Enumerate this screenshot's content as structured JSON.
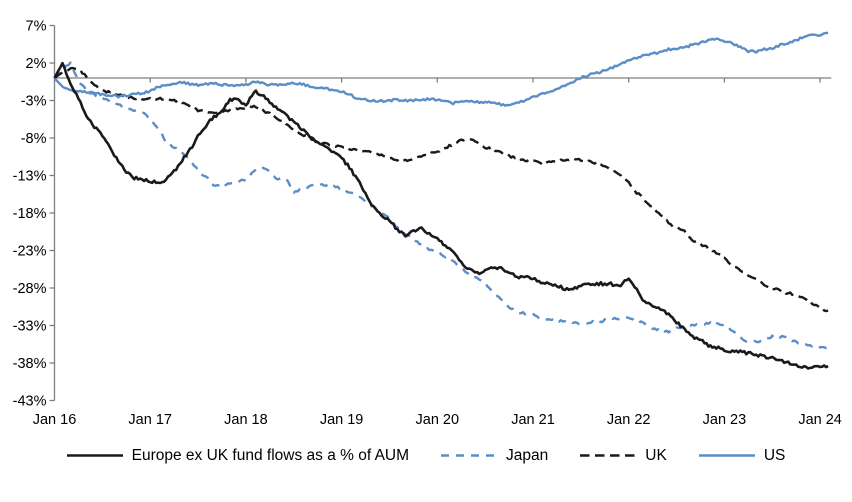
{
  "chart_data": {
    "type": "line",
    "title": "",
    "x_unit": "months since Jan 2016",
    "x_axis": {
      "ticks": [
        {
          "month": 0,
          "label": "Jan 16"
        },
        {
          "month": 12,
          "label": "Jan 17"
        },
        {
          "month": 24,
          "label": "Jan 18"
        },
        {
          "month": 36,
          "label": "Jan 19"
        },
        {
          "month": 48,
          "label": "Jan 20"
        },
        {
          "month": 60,
          "label": "Jan 21"
        },
        {
          "month": 72,
          "label": "Jan 22"
        },
        {
          "month": 84,
          "label": "Jan 23"
        },
        {
          "month": 96,
          "label": "Jan 24"
        }
      ]
    },
    "y_axis": {
      "unit": "%",
      "min": -43,
      "max": 7,
      "ticks": [
        {
          "value": 7,
          "label": "7%"
        },
        {
          "value": 2,
          "label": "2%"
        },
        {
          "value": -3,
          "label": "-3%"
        },
        {
          "value": -8,
          "label": "-8%"
        },
        {
          "value": -13,
          "label": "-13%"
        },
        {
          "value": -18,
          "label": "-18%"
        },
        {
          "value": -23,
          "label": "-23%"
        },
        {
          "value": -28,
          "label": "-28%"
        },
        {
          "value": -33,
          "label": "-33%"
        },
        {
          "value": -38,
          "label": "-38%"
        },
        {
          "value": -43,
          "label": "-43%"
        }
      ]
    },
    "zero_axis_line": true,
    "grid": "off",
    "legend_position": "bottom",
    "axis_color": "#7f7f7f",
    "series": [
      {
        "name": "Europe ex UK fund flows as a % of AUM",
        "color": "#1a1a1a",
        "line_style": "solid",
        "values": [
          0,
          2,
          -0.9,
          -2.7,
          -5.2,
          -6.5,
          -7.6,
          -9.3,
          -11.2,
          -12.5,
          -13.3,
          -13.6,
          -13.8,
          -13.9,
          -13.6,
          -12.5,
          -10.9,
          -9.6,
          -7.8,
          -6.3,
          -5.2,
          -4.3,
          -3,
          -2.9,
          -3.6,
          -1.8,
          -2.2,
          -3.2,
          -4,
          -5,
          -5.9,
          -6.8,
          -7.9,
          -8.7,
          -9.3,
          -10,
          -10.7,
          -11.9,
          -13.6,
          -15.3,
          -17.2,
          -18.3,
          -18.9,
          -20.3,
          -20.9,
          -20.4,
          -20.1,
          -20.8,
          -21.3,
          -22.3,
          -23.3,
          -24.5,
          -25.6,
          -26,
          -25.6,
          -25.2,
          -25.3,
          -26,
          -26.5,
          -26.6,
          -26.7,
          -27.2,
          -27.4,
          -27.6,
          -28.1,
          -28.2,
          -27.6,
          -27.5,
          -27.5,
          -27.4,
          -27.5,
          -27.6,
          -26.7,
          -28.3,
          -29.9,
          -30.3,
          -30.8,
          -31.5,
          -32.5,
          -33.6,
          -34.4,
          -35,
          -35.6,
          -36,
          -36.2,
          -36.4,
          -36.5,
          -36.7,
          -36.9,
          -37.1,
          -37.3,
          -37.6,
          -38,
          -38.3,
          -38.6,
          -38.5,
          -38.6,
          -38.4
        ]
      },
      {
        "name": "Japan",
        "color": "#5b8dc6",
        "line_style": "dashed",
        "values": [
          0,
          1.2,
          2,
          -0.3,
          -1.6,
          -2.3,
          -2.7,
          -3.2,
          -3.6,
          -4,
          -4.3,
          -4.6,
          -5.3,
          -6.9,
          -8.5,
          -9.3,
          -9.8,
          -10.9,
          -12.3,
          -13.2,
          -14.3,
          -14.5,
          -14,
          -13.8,
          -13.6,
          -12.3,
          -11.8,
          -12.5,
          -13.5,
          -13.3,
          -15.2,
          -14.8,
          -14.5,
          -14.2,
          -14.3,
          -14.5,
          -14.7,
          -15.3,
          -15.8,
          -16.3,
          -17.2,
          -18,
          -18.7,
          -19.9,
          -20.8,
          -21.6,
          -22.3,
          -22.8,
          -23.2,
          -23.8,
          -24.3,
          -25.3,
          -26.3,
          -26.8,
          -27.3,
          -28.5,
          -29.6,
          -30.5,
          -31.2,
          -31.4,
          -31.6,
          -32,
          -32.2,
          -32.3,
          -32.5,
          -32.6,
          -32.7,
          -32.6,
          -32.5,
          -32.3,
          -32.1,
          -32,
          -32.1,
          -32.5,
          -32.7,
          -33.3,
          -33.6,
          -33.9,
          -33.4,
          -33.3,
          -33,
          -32.8,
          -32.7,
          -32.8,
          -32.9,
          -33.6,
          -34.7,
          -35.2,
          -35.2,
          -34.7,
          -34.5,
          -34.5,
          -34.7,
          -35.2,
          -35.6,
          -35.7,
          -35.8,
          -35.9
        ]
      },
      {
        "name": "UK",
        "color": "#1a1a1a",
        "line_style": "dashed",
        "values": [
          0,
          0.8,
          1.2,
          1.3,
          0.1,
          -0.9,
          -1.6,
          -2,
          -2.2,
          -2.5,
          -2.7,
          -2.8,
          -2.8,
          -2.7,
          -2.8,
          -2.9,
          -3.3,
          -3.8,
          -4.3,
          -4.5,
          -4.5,
          -4.5,
          -4.3,
          -4.1,
          -4,
          -3.8,
          -4.2,
          -4.8,
          -5.4,
          -6,
          -6.9,
          -7.5,
          -8,
          -8.5,
          -8.8,
          -9,
          -9.2,
          -9.4,
          -9.6,
          -9.7,
          -10,
          -10.3,
          -10.6,
          -10.9,
          -11,
          -10.7,
          -10.4,
          -10.1,
          -9.8,
          -9.3,
          -8.8,
          -8.2,
          -8.1,
          -8.6,
          -9.2,
          -9.6,
          -10,
          -10.4,
          -10.7,
          -10.9,
          -11.1,
          -11.3,
          -11.2,
          -11,
          -10.9,
          -10.7,
          -10.9,
          -11.1,
          -11.3,
          -11.7,
          -12.4,
          -13,
          -13.9,
          -15.3,
          -16.2,
          -17.2,
          -18.3,
          -19.3,
          -20,
          -20.5,
          -21.6,
          -22.2,
          -22.7,
          -23.3,
          -24,
          -25.1,
          -25.6,
          -26.3,
          -26.9,
          -27.5,
          -28,
          -28.4,
          -28.7,
          -28.9,
          -29.5,
          -30,
          -30.7,
          -31
        ]
      },
      {
        "name": "US",
        "color": "#5b8dc6",
        "line_style": "solid",
        "values": [
          0,
          -1.2,
          -1.6,
          -1.8,
          -1.9,
          -2,
          -2.2,
          -2.3,
          -2.5,
          -2.3,
          -2.2,
          -2,
          -1.8,
          -1.2,
          -0.9,
          -0.7,
          -0.6,
          -0.8,
          -0.9,
          -0.8,
          -0.7,
          -0.9,
          -1,
          -1,
          -0.9,
          -0.5,
          -0.7,
          -0.9,
          -0.9,
          -0.8,
          -0.7,
          -0.8,
          -1.1,
          -1.3,
          -1.4,
          -1.6,
          -1.8,
          -2.2,
          -2.7,
          -2.9,
          -3,
          -3.1,
          -3,
          -2.9,
          -3,
          -3,
          -2.9,
          -2.8,
          -2.9,
          -3.1,
          -3.4,
          -3,
          -3.1,
          -3.2,
          -3.2,
          -3.3,
          -3.5,
          -3.7,
          -3.4,
          -3,
          -2.4,
          -2.2,
          -1.9,
          -1.4,
          -1.1,
          -0.5,
          0,
          0.4,
          0.7,
          1,
          1.4,
          1.9,
          2.3,
          2.7,
          3,
          3.2,
          3.5,
          3.8,
          3.9,
          4.1,
          4.4,
          4.7,
          5,
          5.2,
          4.9,
          4.6,
          4.2,
          3.6,
          3.5,
          3.8,
          4,
          4.4,
          4.7,
          5,
          5.5,
          5.9,
          5.7,
          6
        ]
      }
    ]
  }
}
